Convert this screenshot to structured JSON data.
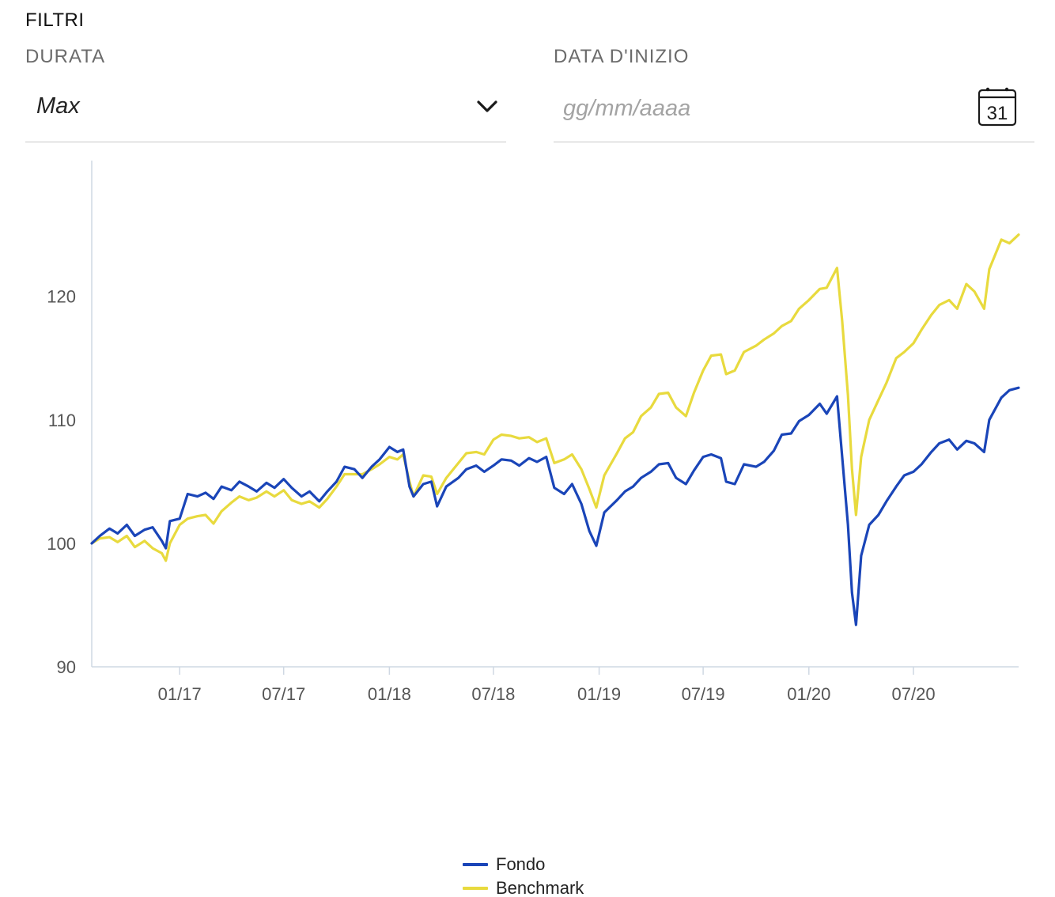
{
  "filters": {
    "title": "FILTRI",
    "duration_label": "DURATA",
    "duration_value": "Max",
    "start_date_label": "DATA D'INIZIO",
    "start_date_placeholder": "gg/mm/aaaa",
    "calendar_day": "31",
    "dropdown_icon": "chevron-down-icon",
    "calendar_icon": "calendar-icon"
  },
  "chart_data": {
    "type": "line",
    "title": "",
    "xlabel": "",
    "ylabel": "",
    "ylim": [
      90,
      131
    ],
    "xlim": [
      "2016-08-01",
      "2020-12-31"
    ],
    "yticks": [
      90,
      100,
      110,
      120
    ],
    "xticks": [
      {
        "date": "2017-01-01",
        "label": "01/17"
      },
      {
        "date": "2017-07-01",
        "label": "07/17"
      },
      {
        "date": "2018-01-01",
        "label": "01/18"
      },
      {
        "date": "2018-07-01",
        "label": "07/18"
      },
      {
        "date": "2019-01-01",
        "label": "01/19"
      },
      {
        "date": "2019-07-01",
        "label": "07/19"
      },
      {
        "date": "2020-01-01",
        "label": "01/20"
      },
      {
        "date": "2020-07-01",
        "label": "07/20"
      }
    ],
    "grid": false,
    "legend_position": "bottom-center",
    "series": [
      {
        "name": "Fondo",
        "color": "#1a45b8",
        "points": [
          [
            "2016-08-01",
            100.0
          ],
          [
            "2016-08-15",
            100.6
          ],
          [
            "2016-09-01",
            101.2
          ],
          [
            "2016-09-15",
            100.8
          ],
          [
            "2016-10-01",
            101.5
          ],
          [
            "2016-10-15",
            100.6
          ],
          [
            "2016-11-01",
            101.1
          ],
          [
            "2016-11-15",
            101.3
          ],
          [
            "2016-12-01",
            100.2
          ],
          [
            "2016-12-08",
            99.6
          ],
          [
            "2016-12-15",
            101.8
          ],
          [
            "2017-01-01",
            102.0
          ],
          [
            "2017-01-15",
            104.0
          ],
          [
            "2017-02-01",
            103.8
          ],
          [
            "2017-02-15",
            104.1
          ],
          [
            "2017-03-01",
            103.6
          ],
          [
            "2017-03-15",
            104.6
          ],
          [
            "2017-04-01",
            104.3
          ],
          [
            "2017-04-15",
            105.0
          ],
          [
            "2017-05-01",
            104.6
          ],
          [
            "2017-05-15",
            104.2
          ],
          [
            "2017-06-01",
            104.9
          ],
          [
            "2017-06-15",
            104.5
          ],
          [
            "2017-07-01",
            105.2
          ],
          [
            "2017-07-15",
            104.5
          ],
          [
            "2017-08-01",
            103.8
          ],
          [
            "2017-08-15",
            104.2
          ],
          [
            "2017-09-01",
            103.4
          ],
          [
            "2017-09-15",
            104.2
          ],
          [
            "2017-10-01",
            105.0
          ],
          [
            "2017-10-15",
            106.2
          ],
          [
            "2017-11-01",
            106.0
          ],
          [
            "2017-11-15",
            105.3
          ],
          [
            "2017-12-01",
            106.2
          ],
          [
            "2017-12-15",
            106.8
          ],
          [
            "2018-01-01",
            107.8
          ],
          [
            "2018-01-15",
            107.4
          ],
          [
            "2018-01-25",
            107.6
          ],
          [
            "2018-02-05",
            104.6
          ],
          [
            "2018-02-12",
            103.8
          ],
          [
            "2018-03-01",
            104.8
          ],
          [
            "2018-03-15",
            105.0
          ],
          [
            "2018-03-25",
            103.0
          ],
          [
            "2018-04-10",
            104.6
          ],
          [
            "2018-05-01",
            105.3
          ],
          [
            "2018-05-15",
            106.0
          ],
          [
            "2018-06-01",
            106.3
          ],
          [
            "2018-06-15",
            105.8
          ],
          [
            "2018-07-01",
            106.3
          ],
          [
            "2018-07-15",
            106.8
          ],
          [
            "2018-08-01",
            106.7
          ],
          [
            "2018-08-15",
            106.3
          ],
          [
            "2018-09-01",
            106.9
          ],
          [
            "2018-09-15",
            106.6
          ],
          [
            "2018-10-01",
            107.0
          ],
          [
            "2018-10-15",
            104.5
          ],
          [
            "2018-11-01",
            104.0
          ],
          [
            "2018-11-15",
            104.8
          ],
          [
            "2018-12-01",
            103.2
          ],
          [
            "2018-12-15",
            101.0
          ],
          [
            "2018-12-27",
            99.8
          ],
          [
            "2019-01-10",
            102.5
          ],
          [
            "2019-02-01",
            103.5
          ],
          [
            "2019-02-15",
            104.2
          ],
          [
            "2019-03-01",
            104.6
          ],
          [
            "2019-03-15",
            105.3
          ],
          [
            "2019-04-01",
            105.8
          ],
          [
            "2019-04-15",
            106.4
          ],
          [
            "2019-05-01",
            106.5
          ],
          [
            "2019-05-15",
            105.3
          ],
          [
            "2019-06-01",
            104.8
          ],
          [
            "2019-06-15",
            105.9
          ],
          [
            "2019-07-01",
            107.0
          ],
          [
            "2019-07-15",
            107.2
          ],
          [
            "2019-08-01",
            106.9
          ],
          [
            "2019-08-10",
            105.0
          ],
          [
            "2019-08-25",
            104.8
          ],
          [
            "2019-09-10",
            106.4
          ],
          [
            "2019-10-01",
            106.2
          ],
          [
            "2019-10-15",
            106.6
          ],
          [
            "2019-11-01",
            107.5
          ],
          [
            "2019-11-15",
            108.8
          ],
          [
            "2019-12-01",
            108.9
          ],
          [
            "2019-12-15",
            109.9
          ],
          [
            "2020-01-01",
            110.4
          ],
          [
            "2020-01-20",
            111.3
          ],
          [
            "2020-02-01",
            110.5
          ],
          [
            "2020-02-19",
            111.9
          ],
          [
            "2020-02-28",
            107.0
          ],
          [
            "2020-03-09",
            101.5
          ],
          [
            "2020-03-16",
            96.0
          ],
          [
            "2020-03-23",
            93.4
          ],
          [
            "2020-04-01",
            99.0
          ],
          [
            "2020-04-15",
            101.5
          ],
          [
            "2020-05-01",
            102.3
          ],
          [
            "2020-05-15",
            103.4
          ],
          [
            "2020-06-01",
            104.6
          ],
          [
            "2020-06-15",
            105.5
          ],
          [
            "2020-07-01",
            105.8
          ],
          [
            "2020-07-15",
            106.4
          ],
          [
            "2020-08-01",
            107.4
          ],
          [
            "2020-08-15",
            108.1
          ],
          [
            "2020-09-01",
            108.4
          ],
          [
            "2020-09-15",
            107.6
          ],
          [
            "2020-10-01",
            108.3
          ],
          [
            "2020-10-15",
            108.1
          ],
          [
            "2020-11-01",
            107.4
          ],
          [
            "2020-11-10",
            110.0
          ],
          [
            "2020-12-01",
            111.8
          ],
          [
            "2020-12-15",
            112.4
          ],
          [
            "2020-12-31",
            112.6
          ]
        ]
      },
      {
        "name": "Benchmark",
        "color": "#e8da3e",
        "points": [
          [
            "2016-08-01",
            100.0
          ],
          [
            "2016-08-15",
            100.4
          ],
          [
            "2016-09-01",
            100.5
          ],
          [
            "2016-09-15",
            100.1
          ],
          [
            "2016-10-01",
            100.6
          ],
          [
            "2016-10-15",
            99.7
          ],
          [
            "2016-11-01",
            100.2
          ],
          [
            "2016-11-15",
            99.6
          ],
          [
            "2016-12-01",
            99.2
          ],
          [
            "2016-12-08",
            98.6
          ],
          [
            "2016-12-15",
            100.0
          ],
          [
            "2017-01-01",
            101.5
          ],
          [
            "2017-01-15",
            102.0
          ],
          [
            "2017-02-01",
            102.2
          ],
          [
            "2017-02-15",
            102.3
          ],
          [
            "2017-03-01",
            101.6
          ],
          [
            "2017-03-15",
            102.6
          ],
          [
            "2017-04-01",
            103.3
          ],
          [
            "2017-04-15",
            103.8
          ],
          [
            "2017-05-01",
            103.5
          ],
          [
            "2017-05-15",
            103.7
          ],
          [
            "2017-06-01",
            104.2
          ],
          [
            "2017-06-15",
            103.8
          ],
          [
            "2017-07-01",
            104.3
          ],
          [
            "2017-07-15",
            103.5
          ],
          [
            "2017-08-01",
            103.2
          ],
          [
            "2017-08-15",
            103.4
          ],
          [
            "2017-09-01",
            102.9
          ],
          [
            "2017-09-15",
            103.6
          ],
          [
            "2017-10-01",
            104.6
          ],
          [
            "2017-10-15",
            105.6
          ],
          [
            "2017-11-01",
            105.6
          ],
          [
            "2017-11-15",
            105.6
          ],
          [
            "2017-12-01",
            106.0
          ],
          [
            "2017-12-15",
            106.4
          ],
          [
            "2018-01-01",
            107.0
          ],
          [
            "2018-01-15",
            106.8
          ],
          [
            "2018-01-25",
            107.2
          ],
          [
            "2018-02-05",
            105.0
          ],
          [
            "2018-02-12",
            103.8
          ],
          [
            "2018-03-01",
            105.5
          ],
          [
            "2018-03-15",
            105.4
          ],
          [
            "2018-03-25",
            104.0
          ],
          [
            "2018-04-10",
            105.3
          ],
          [
            "2018-05-01",
            106.5
          ],
          [
            "2018-05-15",
            107.3
          ],
          [
            "2018-06-01",
            107.4
          ],
          [
            "2018-06-15",
            107.2
          ],
          [
            "2018-07-01",
            108.4
          ],
          [
            "2018-07-15",
            108.8
          ],
          [
            "2018-08-01",
            108.7
          ],
          [
            "2018-08-15",
            108.5
          ],
          [
            "2018-09-01",
            108.6
          ],
          [
            "2018-09-15",
            108.2
          ],
          [
            "2018-10-01",
            108.5
          ],
          [
            "2018-10-15",
            106.5
          ],
          [
            "2018-11-01",
            106.8
          ],
          [
            "2018-11-15",
            107.2
          ],
          [
            "2018-12-01",
            106.0
          ],
          [
            "2018-12-15",
            104.4
          ],
          [
            "2018-12-27",
            102.9
          ],
          [
            "2019-01-10",
            105.5
          ],
          [
            "2019-02-01",
            107.3
          ],
          [
            "2019-02-15",
            108.5
          ],
          [
            "2019-03-01",
            109.0
          ],
          [
            "2019-03-15",
            110.3
          ],
          [
            "2019-04-01",
            111.0
          ],
          [
            "2019-04-15",
            112.1
          ],
          [
            "2019-05-01",
            112.2
          ],
          [
            "2019-05-15",
            111.0
          ],
          [
            "2019-06-01",
            110.3
          ],
          [
            "2019-06-15",
            112.2
          ],
          [
            "2019-07-01",
            114.0
          ],
          [
            "2019-07-15",
            115.2
          ],
          [
            "2019-08-01",
            115.3
          ],
          [
            "2019-08-10",
            113.7
          ],
          [
            "2019-08-25",
            114.0
          ],
          [
            "2019-09-10",
            115.5
          ],
          [
            "2019-10-01",
            116.0
          ],
          [
            "2019-10-15",
            116.5
          ],
          [
            "2019-11-01",
            117.0
          ],
          [
            "2019-11-15",
            117.6
          ],
          [
            "2019-12-01",
            118.0
          ],
          [
            "2019-12-15",
            119.0
          ],
          [
            "2020-01-01",
            119.7
          ],
          [
            "2020-01-20",
            120.6
          ],
          [
            "2020-02-01",
            120.7
          ],
          [
            "2020-02-19",
            122.3
          ],
          [
            "2020-02-28",
            118.0
          ],
          [
            "2020-03-09",
            112.0
          ],
          [
            "2020-03-16",
            106.0
          ],
          [
            "2020-03-23",
            102.3
          ],
          [
            "2020-04-01",
            107.0
          ],
          [
            "2020-04-15",
            110.0
          ],
          [
            "2020-05-01",
            111.6
          ],
          [
            "2020-05-15",
            113.0
          ],
          [
            "2020-06-01",
            115.0
          ],
          [
            "2020-06-15",
            115.5
          ],
          [
            "2020-07-01",
            116.2
          ],
          [
            "2020-07-15",
            117.3
          ],
          [
            "2020-08-01",
            118.5
          ],
          [
            "2020-08-15",
            119.3
          ],
          [
            "2020-09-01",
            119.7
          ],
          [
            "2020-09-15",
            119.0
          ],
          [
            "2020-10-01",
            121.0
          ],
          [
            "2020-10-15",
            120.4
          ],
          [
            "2020-11-01",
            119.0
          ],
          [
            "2020-11-10",
            122.2
          ],
          [
            "2020-12-01",
            124.6
          ],
          [
            "2020-12-15",
            124.3
          ],
          [
            "2020-12-31",
            125.0
          ]
        ]
      }
    ]
  }
}
